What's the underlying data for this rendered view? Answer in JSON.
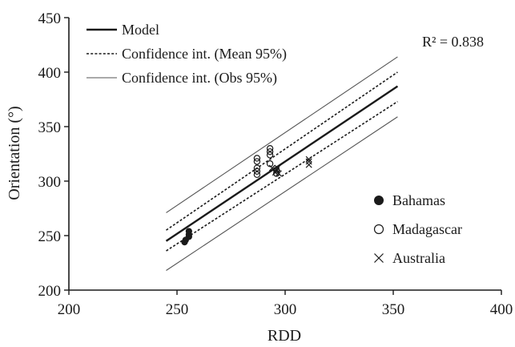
{
  "chart_data": {
    "type": "scatter",
    "xlabel": "RDD",
    "ylabel": "Orientation (°)",
    "xlim": [
      200,
      400
    ],
    "ylim": [
      200,
      450
    ],
    "xticks": [
      "200",
      "250",
      "300",
      "350",
      "400"
    ],
    "yticks": [
      "200",
      "250",
      "300",
      "350",
      "400",
      "450"
    ],
    "grid": false,
    "annotation": "R² = 0.838",
    "lines": [
      {
        "name": "Model",
        "style": "solid-thick",
        "x": [
          245,
          352
        ],
        "y": [
          245,
          387
        ],
        "color": "#1a1a1a"
      },
      {
        "name": "Confidence int. (Mean 95%)",
        "style": "dotted",
        "x": [
          245,
          352
        ],
        "y": [
          255,
          400
        ],
        "color": "#1a1a1a"
      },
      {
        "name": "Confidence int. (Mean 95%)",
        "style": "dotted",
        "x": [
          245,
          352
        ],
        "y": [
          236,
          373
        ],
        "color": "#1a1a1a"
      },
      {
        "name": "Confidence int. (Obs 95%)",
        "style": "solid-thin",
        "x": [
          245,
          352
        ],
        "y": [
          271,
          414
        ],
        "color": "#555555"
      },
      {
        "name": "Confidence int. (Obs 95%)",
        "style": "solid-thin",
        "x": [
          245,
          352
        ],
        "y": [
          218,
          359
        ],
        "color": "#555555"
      }
    ],
    "series": [
      {
        "name": "Bahamas",
        "marker": "filled-circle",
        "points": [
          [
            253.5,
            244
          ],
          [
            254,
            246
          ],
          [
            255.5,
            249
          ],
          [
            255.5,
            251
          ],
          [
            255.5,
            254
          ]
        ]
      },
      {
        "name": "Madagascar",
        "marker": "open-circle",
        "points": [
          [
            287,
            306
          ],
          [
            287,
            309
          ],
          [
            287,
            312
          ],
          [
            287,
            318
          ],
          [
            287,
            321
          ],
          [
            293,
            316
          ],
          [
            293,
            324
          ],
          [
            293,
            327
          ],
          [
            293,
            330
          ],
          [
            296,
            307
          ],
          [
            296,
            310
          ]
        ]
      },
      {
        "name": "Australia",
        "marker": "cross",
        "points": [
          [
            294,
            312
          ],
          [
            295.5,
            308
          ],
          [
            296,
            310
          ],
          [
            296.5,
            312
          ],
          [
            297,
            307
          ],
          [
            311,
            315
          ],
          [
            311,
            318
          ],
          [
            311,
            320
          ]
        ]
      }
    ],
    "legend_lines": {
      "placement": "top-left",
      "items": [
        "Model",
        "Confidence int. (Mean 95%)",
        "Confidence int. (Obs 95%)"
      ]
    },
    "legend_markers": {
      "placement": "bottom-right",
      "items": [
        "Bahamas",
        "Madagascar",
        "Australia"
      ]
    }
  }
}
